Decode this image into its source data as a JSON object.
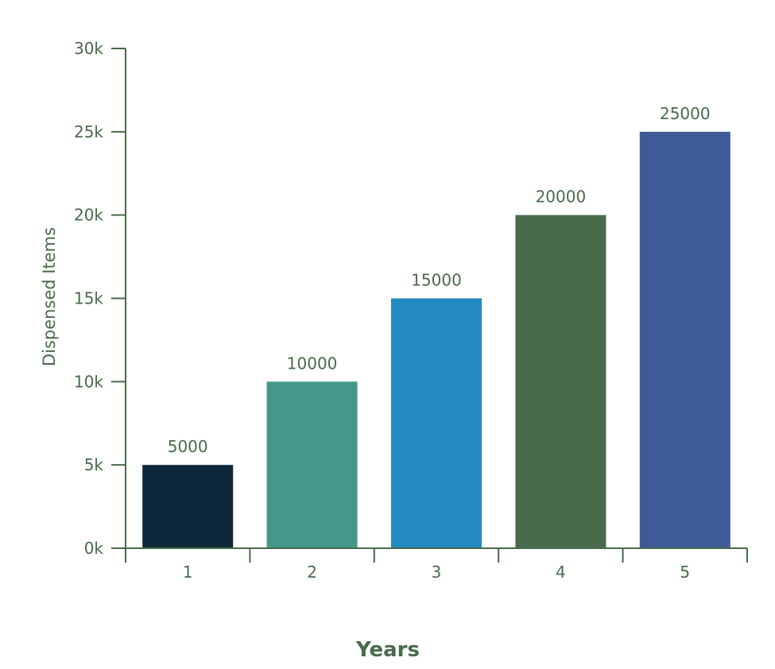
{
  "chart_data": {
    "type": "bar",
    "categories": [
      "1",
      "2",
      "3",
      "4",
      "5"
    ],
    "values": [
      5000,
      10000,
      15000,
      20000,
      25000
    ],
    "data_labels": [
      "5000",
      "10000",
      "15000",
      "20000",
      "25000"
    ],
    "xlabel": "Years",
    "ylabel": "Dispensed Items",
    "ylim": [
      0,
      30000
    ],
    "yticks": [
      0,
      5000,
      10000,
      15000,
      20000,
      25000,
      30000
    ],
    "ytick_labels": [
      "0k",
      "5k",
      "10k",
      "15k",
      "20k",
      "25k",
      "30k"
    ],
    "grid": false,
    "legend": "none",
    "bar_colors": [
      "#0e263a",
      "#45998a",
      "#2389c3",
      "#496a4b",
      "#3e5b98"
    ],
    "axis_color": "#496a4b",
    "text_color": "#496a4b"
  }
}
